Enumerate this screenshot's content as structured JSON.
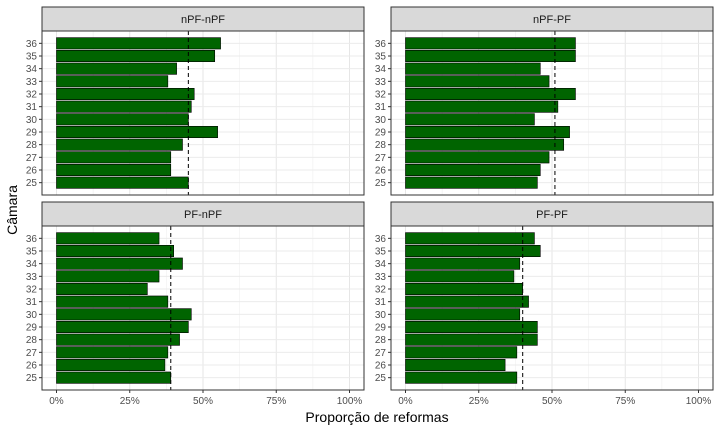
{
  "chart_data": {
    "type": "bar",
    "orientation": "horizontal",
    "facet_layout": "2x2",
    "xlabel": "Proporção de reformas",
    "ylabel": "Câmara",
    "xlim": [
      0,
      1
    ],
    "x_ticks": [
      0,
      0.25,
      0.5,
      0.75,
      1
    ],
    "x_tick_labels": [
      "0%",
      "25%",
      "50%",
      "75%",
      "100%"
    ],
    "categories": [
      "25",
      "26",
      "27",
      "28",
      "29",
      "30",
      "31",
      "32",
      "33",
      "34",
      "35",
      "36"
    ],
    "bar_color": "#006400",
    "panel_strip_color": "#d9d9d9",
    "grid": true,
    "reference_line": "dashed vertical line",
    "panels": [
      {
        "title": "nPF-nPF",
        "values": [
          0.45,
          0.39,
          0.39,
          0.43,
          0.55,
          0.45,
          0.46,
          0.47,
          0.38,
          0.41,
          0.54,
          0.56
        ],
        "reference_value": 0.45
      },
      {
        "title": "nPF-PF",
        "values": [
          0.45,
          0.46,
          0.49,
          0.54,
          0.56,
          0.44,
          0.52,
          0.58,
          0.49,
          0.46,
          0.58,
          0.58
        ],
        "reference_value": 0.51
      },
      {
        "title": "PF-nPF",
        "values": [
          0.39,
          0.37,
          0.38,
          0.42,
          0.45,
          0.46,
          0.38,
          0.31,
          0.35,
          0.43,
          0.4,
          0.35
        ],
        "reference_value": 0.39
      },
      {
        "title": "PF-PF",
        "values": [
          0.38,
          0.34,
          0.38,
          0.45,
          0.45,
          0.39,
          0.42,
          0.4,
          0.37,
          0.39,
          0.46,
          0.44
        ],
        "reference_value": 0.4
      }
    ]
  }
}
